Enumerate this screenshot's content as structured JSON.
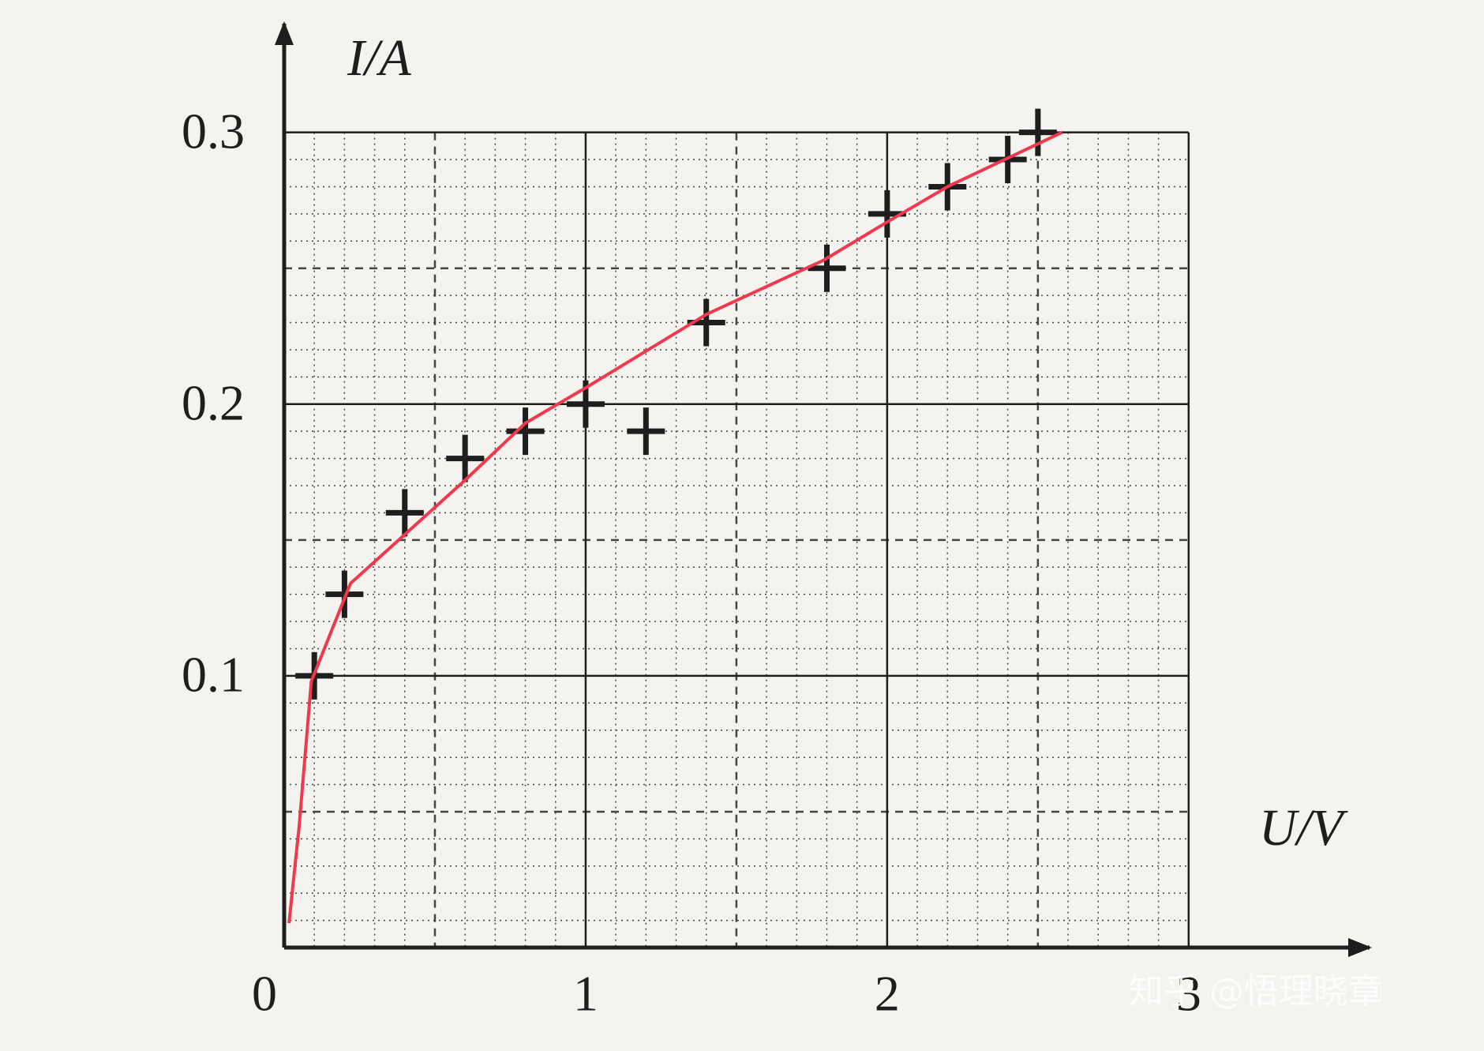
{
  "chart_data": {
    "type": "scatter",
    "x_label": "U/V",
    "y_label": "I/A",
    "watermark": "知乎 @悟理晓章",
    "xlim": [
      0,
      3.6
    ],
    "ylim": [
      0,
      0.34
    ],
    "xticks": [
      0,
      1,
      2,
      3
    ],
    "yticks": [
      0.1,
      0.2,
      0.3
    ],
    "grid": true,
    "series": [
      {
        "type": "scatter",
        "color": "#1e1e1e",
        "x": [
          0.1,
          0.2,
          0.4,
          0.6,
          0.8,
          1.0,
          1.2,
          1.4,
          1.8,
          2.0,
          2.2,
          2.4,
          2.5
        ],
        "values": [
          0.1,
          0.13,
          0.16,
          0.18,
          0.19,
          0.2,
          0.19,
          0.23,
          0.25,
          0.27,
          0.28,
          0.29,
          0.3
        ]
      },
      {
        "type": "line",
        "color": "#f0394c",
        "x": [
          0.016,
          0.05,
          0.09,
          0.22,
          0.41,
          0.6,
          0.8,
          1.0,
          1.4,
          1.79,
          2.0,
          2.2,
          2.58
        ],
        "values": [
          0.009,
          0.045,
          0.098,
          0.134,
          0.153,
          0.172,
          0.193,
          0.206,
          0.233,
          0.253,
          0.267,
          0.28,
          0.3
        ]
      }
    ]
  }
}
